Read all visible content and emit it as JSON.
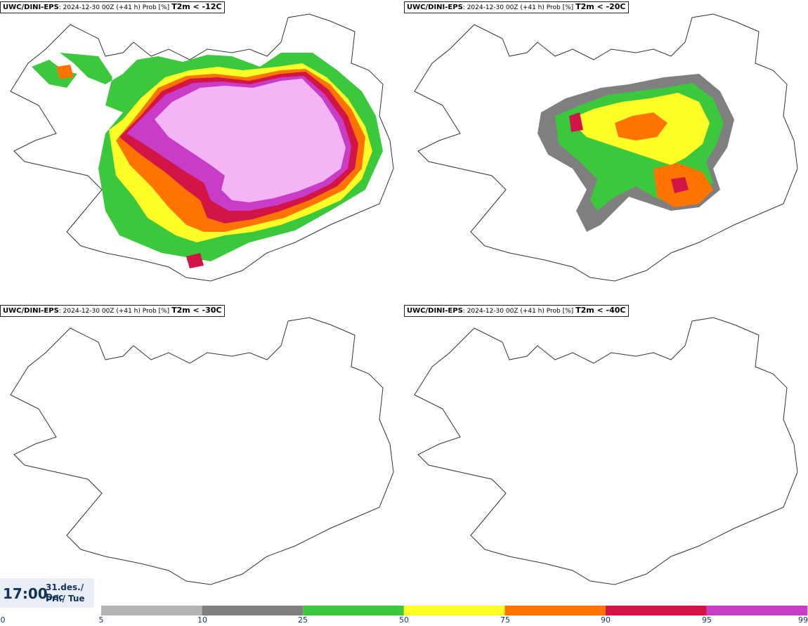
{
  "panels": [
    {
      "model": "UWC/DINI-EPS",
      "run": "2024-12-30 00Z (+41 h) Prob [%]",
      "threshold": "T2m < -12C"
    },
    {
      "model": "UWC/DINI-EPS",
      "run": "2024-12-30 00Z (+41 h) Prob [%]",
      "threshold": "T2m < -20C"
    },
    {
      "model": "UWC/DINI-EPS",
      "run": "2024-12-30 00Z (+41 h) Prob [%]",
      "threshold": "T2m < -30C"
    },
    {
      "model": "UWC/DINI-EPS",
      "run": "2024-12-30 00Z (+41 h) Prob [%]",
      "threshold": "T2m < -40C"
    }
  ],
  "time": {
    "clock": "17:00",
    "date_line": "31.des./ Dec",
    "weekday_line": "Þri./ Tue"
  },
  "legend": {
    "ticks": [
      "0",
      "5",
      "10",
      "25",
      "50",
      "75",
      "90",
      "95",
      "99"
    ],
    "bins": [
      {
        "from": 5,
        "to": 10,
        "color": "#b4b4b4"
      },
      {
        "from": 10,
        "to": 25,
        "color": "#7f7f7f"
      },
      {
        "from": 25,
        "to": 50,
        "color": "#3cc83c"
      },
      {
        "from": 50,
        "to": 75,
        "color": "#ffff28"
      },
      {
        "from": 75,
        "to": 90,
        "color": "#ff7300"
      },
      {
        "from": 90,
        "to": 95,
        "color": "#d21446"
      },
      {
        "from": 95,
        "to": 99,
        "color": "#c83cc8"
      },
      {
        "from": 99,
        "to": 100,
        "color": "#f5b4f5"
      }
    ]
  }
}
